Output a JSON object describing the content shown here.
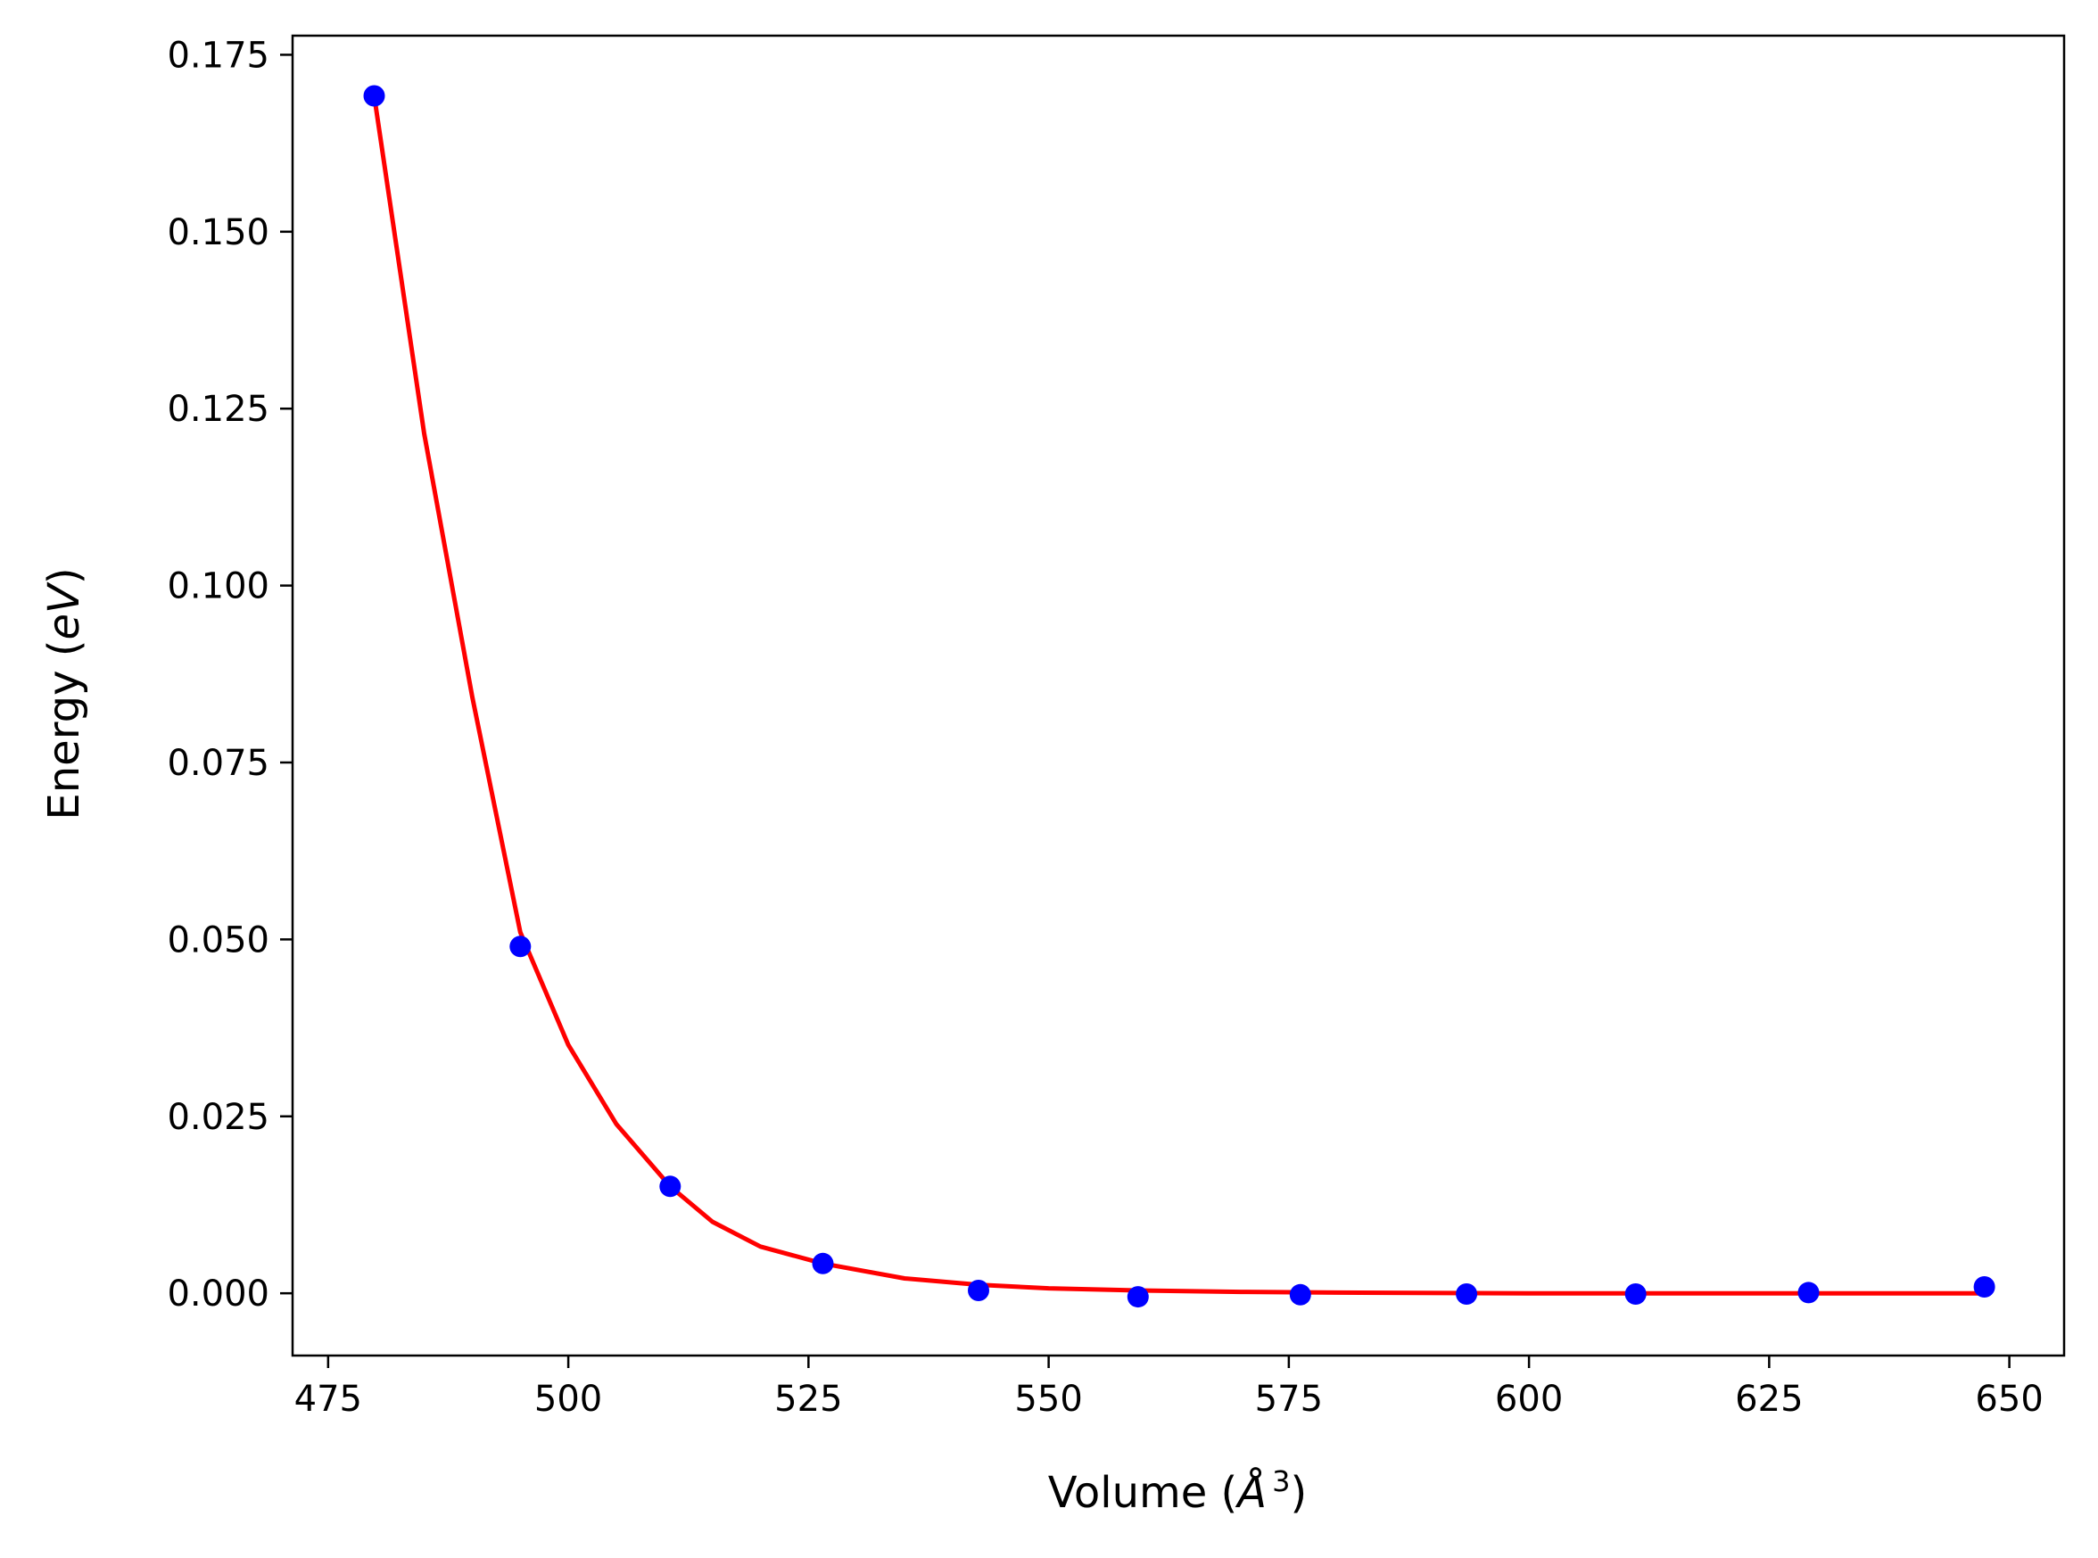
{
  "chart_data": {
    "type": "scatter",
    "title": "",
    "xlabel": "Volume (Å³)",
    "ylabel": "Energy (eV)",
    "xlabel_parts": {
      "prefix": "Volume (",
      "unit_symbol": "Å",
      "unit_power": "3",
      "suffix": ")"
    },
    "ylabel_parts": {
      "prefix": "Energy (",
      "unit": "eV",
      "suffix": ")"
    },
    "xlim": [
      471.3,
      655.7
    ],
    "ylim": [
      -0.0088,
      0.1777
    ],
    "x_ticks": [
      475,
      500,
      525,
      550,
      575,
      600,
      625,
      650
    ],
    "x_tick_labels": [
      "475",
      "500",
      "525",
      "550",
      "575",
      "600",
      "625",
      "650"
    ],
    "y_ticks": [
      0.0,
      0.025,
      0.05,
      0.075,
      0.1,
      0.125,
      0.15,
      0.175
    ],
    "y_tick_labels": [
      "0.000",
      "0.025",
      "0.050",
      "0.075",
      "0.100",
      "0.125",
      "0.150",
      "0.175"
    ],
    "grid": false,
    "series": [
      {
        "kind": "points",
        "color": "#0000ff",
        "x": [
          479.8,
          495.0,
          510.6,
          526.5,
          542.7,
          559.3,
          576.2,
          593.5,
          611.1,
          629.1,
          647.4
        ],
        "y": [
          0.1692,
          0.049,
          0.0151,
          0.0042,
          0.0004,
          -0.0005,
          -0.0002,
          -0.0001,
          -0.0001,
          0.0001,
          0.0009
        ]
      },
      {
        "kind": "fit_line",
        "color": "#ff0000",
        "x": [
          479.8,
          485.0,
          490.0,
          495.0,
          500.0,
          505.0,
          510.6,
          515.0,
          520.0,
          526.5,
          535.0,
          542.7,
          550.0,
          559.3,
          570.0,
          580.0,
          600.0,
          620.0,
          647.4
        ],
        "y": [
          0.1692,
          0.1215,
          0.0843,
          0.051,
          0.0351,
          0.0239,
          0.0151,
          0.0101,
          0.0066,
          0.0042,
          0.0021,
          0.0012,
          0.0007,
          0.0004,
          0.0002,
          0.0001,
          0.0,
          0.0,
          0.0
        ]
      }
    ]
  }
}
